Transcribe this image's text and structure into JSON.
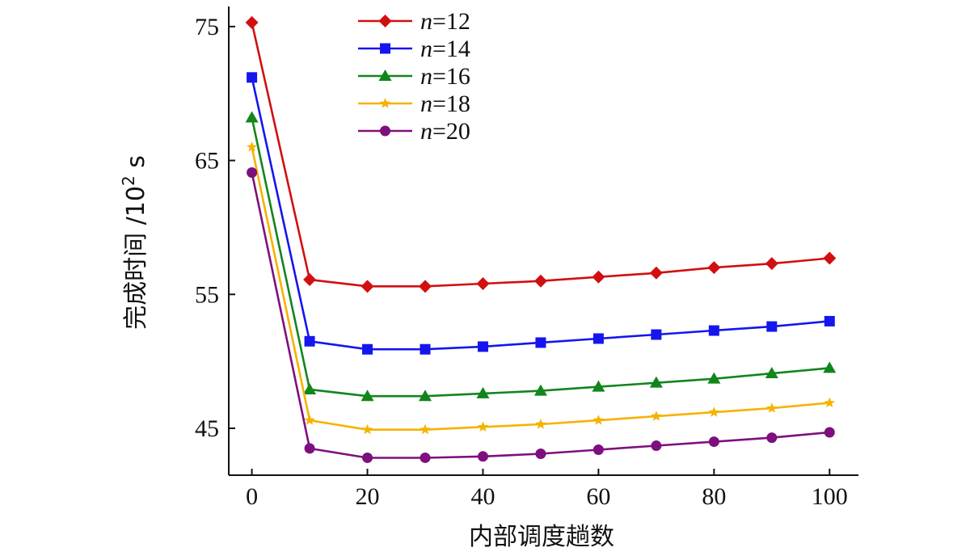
{
  "chart_data": {
    "type": "line",
    "xlabel": "内部调度趟数",
    "ylabel": "完成时间 /10² s",
    "ylabel_parts": {
      "main": "完成时间 /10",
      "sup": "2",
      "unit": " s"
    },
    "xlim": [
      -4,
      105
    ],
    "ylim": [
      41.5,
      76.5
    ],
    "x_ticks": [
      0,
      20,
      40,
      60,
      80,
      100
    ],
    "x_tick_labels": [
      "0",
      "20",
      "40",
      "60",
      "80",
      "100"
    ],
    "y_ticks": [
      45,
      55,
      65,
      75
    ],
    "y_tick_labels": [
      "45",
      "55",
      "65",
      "75"
    ],
    "grid": false,
    "legend_position": "top-center",
    "x": [
      0,
      10,
      20,
      30,
      40,
      50,
      60,
      70,
      80,
      90,
      100
    ],
    "series": [
      {
        "name_italic": "n",
        "name_rest": "=12",
        "color": "#d10f10",
        "marker": "diamond",
        "values": [
          75.3,
          56.1,
          55.6,
          55.6,
          55.8,
          56.0,
          56.3,
          56.6,
          57.0,
          57.3,
          57.7
        ]
      },
      {
        "name_italic": "n",
        "name_rest": "=14",
        "color": "#1515ee",
        "marker": "square",
        "values": [
          71.2,
          51.5,
          50.9,
          50.9,
          51.1,
          51.4,
          51.7,
          52.0,
          52.3,
          52.6,
          53.0
        ]
      },
      {
        "name_italic": "n",
        "name_rest": "=16",
        "color": "#12851c",
        "marker": "triangle",
        "values": [
          68.2,
          47.9,
          47.4,
          47.4,
          47.6,
          47.8,
          48.1,
          48.4,
          48.7,
          49.1,
          49.5
        ]
      },
      {
        "name_italic": "n",
        "name_rest": "=18",
        "color": "#f5b200",
        "marker": "star",
        "values": [
          66.0,
          45.6,
          44.9,
          44.9,
          45.1,
          45.3,
          45.6,
          45.9,
          46.2,
          46.5,
          46.9
        ]
      },
      {
        "name_italic": "n",
        "name_rest": "=20",
        "color": "#7e0f7e",
        "marker": "circle",
        "values": [
          64.1,
          43.5,
          42.8,
          42.8,
          42.9,
          43.1,
          43.4,
          43.7,
          44.0,
          44.3,
          44.7
        ]
      }
    ]
  }
}
